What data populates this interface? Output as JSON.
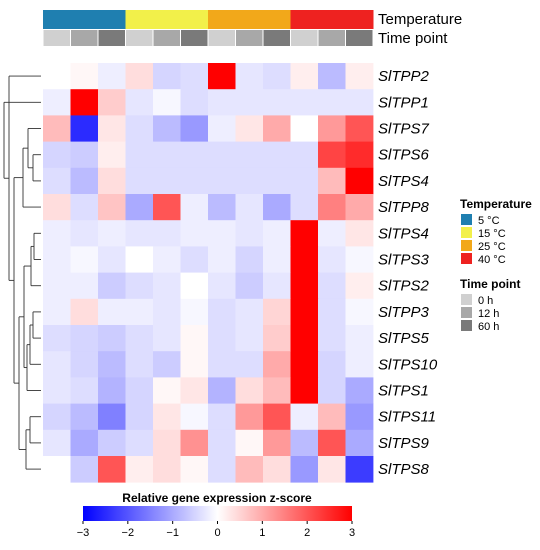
{
  "chart_data": {
    "type": "heatmap",
    "title": "",
    "annotation_rows": [
      {
        "name": "Temperature",
        "values": [
          "5 °C",
          "5 °C",
          "5 °C",
          "15 °C",
          "15 °C",
          "15 °C",
          "25 °C",
          "25 °C",
          "25 °C",
          "40 °C",
          "40 °C",
          "40 °C"
        ]
      },
      {
        "name": "Time point",
        "values": [
          "0 h",
          "12 h",
          "60 h",
          "0 h",
          "12 h",
          "60 h",
          "0 h",
          "12 h",
          "60 h",
          "0 h",
          "12 h",
          "60 h"
        ]
      }
    ],
    "rows": [
      "SlTPP2",
      "SlTPP1",
      "SlTPS7",
      "SlTPS6",
      "SlTPS4",
      "SlTPP8",
      "SlTPS4",
      "SlTPS3",
      "SlTPS2",
      "SlTPP3",
      "SlTPS5",
      "SlTPS10",
      "SlTPS1",
      "SlTPS11",
      "SlTPS9",
      "SlTPS8"
    ],
    "values": [
      [
        0.0,
        0.1,
        -0.2,
        0.4,
        -0.5,
        -0.4,
        3.0,
        -0.3,
        -0.4,
        0.2,
        -0.8,
        0.2
      ],
      [
        -0.2,
        3.0,
        0.6,
        -0.3,
        -0.1,
        -0.4,
        -0.3,
        -0.3,
        -0.3,
        -0.3,
        -0.3,
        -0.3
      ],
      [
        0.8,
        -2.5,
        0.3,
        -0.4,
        -0.8,
        -1.2,
        -0.2,
        0.3,
        1.0,
        0.0,
        1.2,
        2.0
      ],
      [
        -0.5,
        -0.6,
        0.2,
        -0.4,
        -0.4,
        -0.4,
        -0.4,
        -0.4,
        -0.4,
        -0.4,
        2.2,
        2.5
      ],
      [
        -0.4,
        -0.8,
        0.4,
        -0.4,
        -0.4,
        -0.4,
        -0.4,
        -0.4,
        -0.4,
        -0.4,
        0.8,
        3.0
      ],
      [
        0.4,
        -0.4,
        0.7,
        -1.0,
        2.0,
        -0.2,
        -0.8,
        -0.3,
        -1.0,
        -0.4,
        1.5,
        1.0
      ],
      [
        -0.2,
        -0.3,
        -0.2,
        -0.3,
        -0.3,
        -0.2,
        -0.2,
        -0.3,
        -0.2,
        3.0,
        -0.2,
        0.3
      ],
      [
        -0.2,
        -0.1,
        -0.3,
        0.0,
        -0.2,
        -0.4,
        -0.2,
        -0.5,
        -0.2,
        3.0,
        -0.3,
        -0.1
      ],
      [
        -0.2,
        -0.2,
        -0.6,
        -0.4,
        -0.3,
        0.0,
        -0.3,
        -0.6,
        -0.3,
        3.0,
        -0.4,
        0.2
      ],
      [
        -0.2,
        0.4,
        -0.2,
        -0.2,
        -0.3,
        -0.1,
        -0.4,
        -0.3,
        0.5,
        3.0,
        -0.4,
        -0.1
      ],
      [
        -0.4,
        -0.5,
        -0.6,
        -0.4,
        -0.3,
        0.1,
        -0.4,
        -0.3,
        0.6,
        3.0,
        -0.4,
        -0.2
      ],
      [
        -0.3,
        -0.5,
        -0.8,
        -0.4,
        -0.6,
        0.1,
        -0.4,
        -0.4,
        1.0,
        3.0,
        -0.5,
        -0.2
      ],
      [
        -0.3,
        -0.4,
        -0.9,
        -0.5,
        0.1,
        0.3,
        -0.9,
        0.4,
        0.8,
        3.0,
        -0.5,
        -1.0
      ],
      [
        -0.5,
        -0.8,
        -1.5,
        -0.5,
        0.3,
        -0.1,
        -0.4,
        1.2,
        2.0,
        -0.2,
        0.8,
        -1.2
      ],
      [
        -0.3,
        -1.0,
        -0.6,
        -0.4,
        0.4,
        1.3,
        -0.4,
        0.1,
        1.2,
        -0.8,
        2.0,
        -1.0
      ],
      [
        0.0,
        -0.6,
        2.0,
        0.2,
        0.4,
        0.1,
        -0.4,
        0.8,
        0.4,
        -1.2,
        0.3,
        -2.3
      ]
    ],
    "colorbar": {
      "label": "Relative gene expression z-score",
      "min": -3,
      "max": 3,
      "ticks": [
        "−3",
        "−2",
        "−1",
        "0",
        "1",
        "2",
        "3"
      ],
      "low_color": "#0000ff",
      "mid_color": "#ffffff",
      "high_color": "#ff0000"
    },
    "legend": {
      "placement": "right",
      "groups": [
        {
          "title": "Temperature",
          "items": [
            {
              "label": "5 °C",
              "color": "#1f7fb0"
            },
            {
              "label": "15 °C",
              "color": "#f2f04a"
            },
            {
              "label": "25 °C",
              "color": "#f2a81a"
            },
            {
              "label": "40 °C",
              "color": "#ee2220"
            }
          ]
        },
        {
          "title": "Time point",
          "items": [
            {
              "label": "0 h",
              "color": "#d0d0d0"
            },
            {
              "label": "12 h",
              "color": "#a8a8a8"
            },
            {
              "label": "60 h",
              "color": "#7a7a7a"
            }
          ]
        }
      ]
    },
    "grid": false
  }
}
